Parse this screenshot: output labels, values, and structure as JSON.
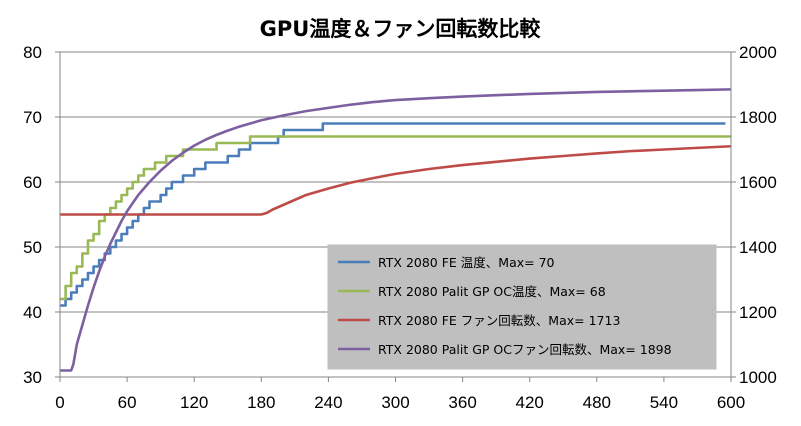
{
  "chart_data": {
    "type": "line",
    "title": "GPU温度＆ファン回転数比較",
    "xlabel": "",
    "ylabel": "",
    "y2label": "",
    "xlim": [
      0,
      600
    ],
    "ylim": [
      30,
      80
    ],
    "y2lim": [
      1000,
      2000
    ],
    "x_ticks": [
      0,
      60,
      120,
      180,
      240,
      300,
      360,
      420,
      480,
      540,
      600
    ],
    "y_ticks": [
      30,
      40,
      50,
      60,
      70,
      80
    ],
    "y2_ticks": [
      1000,
      1200,
      1400,
      1600,
      1800,
      2000
    ],
    "grid": "horizontal",
    "legend_position": "bottom-right",
    "series": [
      {
        "name": "RTX 2080 FE 温度、Max= 70",
        "axis": "left",
        "color": "#4a7ebb",
        "x": [
          0,
          5,
          10,
          15,
          20,
          25,
          30,
          35,
          40,
          45,
          50,
          55,
          60,
          65,
          70,
          75,
          80,
          85,
          90,
          95,
          100,
          105,
          110,
          115,
          120,
          125,
          130,
          140,
          150,
          160,
          170,
          180,
          195,
          200,
          230,
          235,
          260,
          280,
          290,
          300,
          320,
          330,
          360,
          380,
          400,
          430,
          440,
          460,
          480,
          500,
          520,
          540,
          560,
          580,
          595
        ],
        "y": [
          41,
          42,
          43,
          44,
          45,
          46,
          47,
          48,
          49,
          50,
          51,
          52,
          53,
          54,
          55,
          56,
          57,
          57,
          58,
          59,
          60,
          60,
          61,
          61,
          62,
          62,
          63,
          63,
          64,
          65,
          66,
          66,
          67,
          68,
          68,
          69,
          69,
          69,
          69,
          69,
          69,
          69,
          69,
          69,
          69,
          69,
          69,
          69,
          69,
          69,
          69,
          69,
          69,
          69,
          69
        ]
      },
      {
        "name": "RTX 2080 Palit GP OC温度、Max= 68",
        "axis": "left",
        "color": "#98b954",
        "x": [
          0,
          5,
          10,
          15,
          20,
          25,
          30,
          35,
          40,
          45,
          50,
          55,
          60,
          65,
          70,
          75,
          80,
          85,
          90,
          95,
          100,
          105,
          110,
          115,
          120,
          130,
          140,
          150,
          160,
          170,
          180,
          190,
          200,
          220,
          240,
          260,
          300,
          340,
          380,
          420,
          460,
          500,
          540,
          580,
          600
        ],
        "y": [
          42,
          44,
          46,
          47,
          49,
          51,
          52,
          54,
          55,
          56,
          57,
          58,
          59,
          60,
          61,
          62,
          62,
          63,
          63,
          64,
          64,
          64,
          65,
          65,
          65,
          65,
          66,
          66,
          66,
          67,
          67,
          67,
          67,
          67,
          67,
          67,
          67,
          67,
          67,
          67,
          67,
          67,
          67,
          67,
          67
        ]
      },
      {
        "name": "RTX 2080 FE ファン回転数、Max= 1713",
        "axis": "right",
        "color": "#be4b48",
        "x": [
          0,
          60,
          120,
          180,
          185,
          190,
          200,
          210,
          220,
          240,
          260,
          280,
          300,
          330,
          360,
          390,
          420,
          450,
          480,
          510,
          540,
          570,
          600
        ],
        "y": [
          1500,
          1500,
          1500,
          1500,
          1505,
          1515,
          1530,
          1545,
          1560,
          1580,
          1598,
          1612,
          1625,
          1640,
          1652,
          1662,
          1672,
          1680,
          1688,
          1695,
          1700,
          1705,
          1710
        ]
      },
      {
        "name": "RTX 2080 Palit GP OCファン回転数、Max= 1898",
        "axis": "right",
        "color": "#7d60a0",
        "x": [
          0,
          5,
          10,
          12,
          15,
          20,
          25,
          30,
          35,
          40,
          45,
          50,
          55,
          60,
          70,
          80,
          90,
          100,
          110,
          120,
          130,
          140,
          150,
          160,
          170,
          180,
          200,
          220,
          240,
          260,
          280,
          300,
          330,
          360,
          390,
          420,
          450,
          480,
          510,
          540,
          570,
          600
        ],
        "y": [
          1020,
          1020,
          1020,
          1040,
          1100,
          1160,
          1220,
          1275,
          1325,
          1370,
          1410,
          1445,
          1480,
          1510,
          1560,
          1600,
          1635,
          1665,
          1690,
          1712,
          1730,
          1745,
          1758,
          1770,
          1780,
          1790,
          1805,
          1818,
          1828,
          1838,
          1846,
          1852,
          1858,
          1863,
          1867,
          1871,
          1874,
          1877,
          1879,
          1881,
          1883,
          1885
        ]
      }
    ]
  }
}
